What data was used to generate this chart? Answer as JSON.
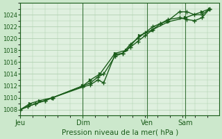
{
  "bg_color": "#cce8cc",
  "plot_bg_color": "#dff0df",
  "grid_color": "#aaccaa",
  "line_color": "#1a5c1a",
  "marker_color": "#1a5c1a",
  "xlabel": "Pression niveau de la mer( hPa )",
  "ylim": [
    1007,
    1026
  ],
  "yticks": [
    1008,
    1010,
    1012,
    1014,
    1016,
    1018,
    1020,
    1022,
    1024
  ],
  "day_labels": [
    "Jeu",
    "Dim",
    "Ven",
    "Sam"
  ],
  "day_positions": [
    0.0,
    0.33,
    0.67,
    0.87
  ],
  "series1_x": [
    0.0,
    0.04,
    0.08,
    0.13,
    0.17,
    0.33,
    0.37,
    0.41,
    0.44,
    0.5,
    0.54,
    0.58,
    0.62,
    0.66,
    0.7,
    0.74,
    0.78,
    0.84,
    0.88,
    0.92,
    0.96,
    1.0
  ],
  "series1_y": [
    1008,
    1008.5,
    1009,
    1009.5,
    1010,
    1012,
    1012.5,
    1013.5,
    1014,
    1017,
    1017.5,
    1018.5,
    1019.5,
    1020.5,
    1021.5,
    1022.5,
    1023,
    1024.5,
    1024.5,
    1024,
    1024,
    1025
  ],
  "series2_x": [
    0.0,
    0.04,
    0.08,
    0.13,
    0.17,
    0.33,
    0.37,
    0.41,
    0.44,
    0.5,
    0.54,
    0.58,
    0.62,
    0.66,
    0.7,
    0.74,
    0.78,
    0.84,
    0.88,
    0.92,
    0.96,
    1.0
  ],
  "series2_y": [
    1008,
    1008.5,
    1009,
    1009.5,
    1010,
    1011.8,
    1012.2,
    1013,
    1012.5,
    1017.3,
    1017.5,
    1019,
    1020,
    1021,
    1022,
    1022.5,
    1023.2,
    1023.5,
    1023.2,
    1023,
    1023.5,
    1025
  ],
  "series3_x": [
    0.0,
    0.05,
    0.1,
    0.17,
    0.33,
    0.37,
    0.42,
    0.5,
    0.56,
    0.63,
    0.7,
    0.78,
    0.87,
    0.96,
    1.0
  ],
  "series3_y": [
    1008,
    1009,
    1009.5,
    1010,
    1012,
    1013,
    1014,
    1017.5,
    1018,
    1020.5,
    1021.5,
    1022.8,
    1023.5,
    1024.5,
    1025
  ]
}
